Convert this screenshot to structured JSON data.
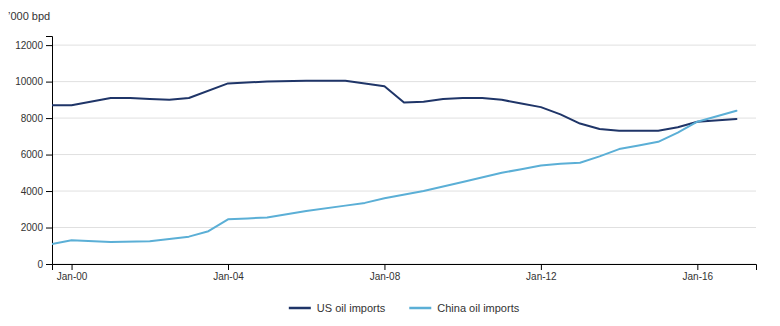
{
  "chart_data": {
    "type": "line",
    "y_label": "’000 bpd",
    "xlim": [
      1999.5,
      2017.5
    ],
    "xticks": [
      {
        "value": 2000,
        "label": "Jan-00"
      },
      {
        "value": 2004,
        "label": "Jan-04"
      },
      {
        "value": 2008,
        "label": "Jan-08"
      },
      {
        "value": 2012,
        "label": "Jan-12"
      },
      {
        "value": 2016,
        "label": "Jan-16"
      }
    ],
    "ylim": [
      0,
      12500
    ],
    "yticks": [
      0,
      2000,
      4000,
      6000,
      8000,
      10000,
      12000
    ],
    "grid": true,
    "legend": "bottom",
    "series": [
      {
        "name": "US oil imports",
        "color": "#1f3568",
        "x": [
          1999.5,
          2000,
          2001,
          2001.5,
          2002,
          2002.5,
          2003,
          2004,
          2005,
          2006,
          2007,
          2008,
          2008.5,
          2009,
          2009.5,
          2010,
          2010.5,
          2011,
          2011.5,
          2012,
          2012.5,
          2013,
          2013.5,
          2014,
          2014.5,
          2015,
          2015.5,
          2016,
          2017
        ],
        "values": [
          8700,
          8700,
          9100,
          9100,
          9050,
          9000,
          9100,
          9900,
          10000,
          10050,
          10050,
          9750,
          8850,
          8900,
          9050,
          9100,
          9100,
          9000,
          8800,
          8600,
          8200,
          7700,
          7400,
          7300,
          7300,
          7300,
          7500,
          7800,
          7950
        ]
      },
      {
        "name": "China oil imports",
        "color": "#5bafd6",
        "x": [
          1999.5,
          2000,
          2001,
          2002,
          2003,
          2003.5,
          2004,
          2004.5,
          2005,
          2006,
          2007,
          2007.5,
          2008,
          2009,
          2010,
          2011,
          2011.5,
          2012,
          2012.5,
          2013,
          2013.5,
          2014,
          2014.5,
          2015,
          2015.5,
          2016,
          2017
        ],
        "values": [
          1100,
          1300,
          1200,
          1250,
          1500,
          1800,
          2450,
          2500,
          2550,
          2900,
          3200,
          3350,
          3600,
          4000,
          4500,
          5000,
          5200,
          5400,
          5500,
          5550,
          5900,
          6300,
          6500,
          6700,
          7200,
          7800,
          8400
        ]
      }
    ]
  }
}
